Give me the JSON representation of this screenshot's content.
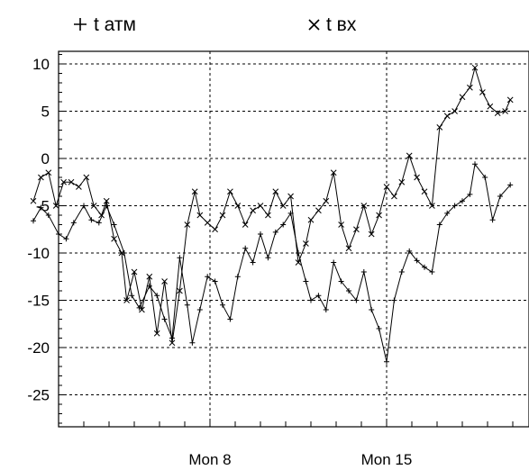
{
  "chart_data": {
    "type": "line",
    "title": "",
    "xlabel": "",
    "ylabel": "",
    "ylim": [
      -28.5,
      11.5
    ],
    "y_ticks": [
      "10",
      "5",
      "0",
      "-5",
      "-10",
      "-15",
      "-20",
      "-25"
    ],
    "x_ticks": [
      "Mon 8",
      "Mon 15"
    ],
    "grid": true,
    "legend_position": "top",
    "x_unit": "day (Mon 8 = 8.0)",
    "series": [
      {
        "name": "t атм",
        "marker": "+",
        "color": "#000000",
        "x": [
          1.0,
          1.3,
          1.6,
          2.0,
          2.3,
          2.6,
          3.0,
          3.3,
          3.6,
          3.9,
          4.2,
          4.6,
          4.9,
          5.2,
          5.6,
          5.9,
          6.2,
          6.5,
          6.8,
          7.1,
          7.3,
          7.6,
          7.9,
          8.2,
          8.5,
          8.8,
          9.1,
          9.4,
          9.7,
          10.0,
          10.3,
          10.6,
          10.9,
          11.2,
          11.5,
          11.8,
          12.0,
          12.3,
          12.6,
          12.9,
          13.2,
          13.5,
          13.8,
          14.1,
          14.4,
          14.7,
          15.0,
          15.3,
          15.6,
          15.9,
          16.2,
          16.5,
          16.8,
          17.1,
          17.4,
          17.7,
          18.0,
          18.3,
          18.5,
          18.9,
          19.2,
          19.5,
          19.9
        ],
        "values": [
          -6.6,
          -5.2,
          -6.0,
          -8.0,
          -8.5,
          -6.8,
          -5.0,
          -6.5,
          -6.8,
          -5.0,
          -7.0,
          -10.0,
          -14.5,
          -15.8,
          -13.5,
          -14.5,
          -17.0,
          -19.0,
          -10.5,
          -15.5,
          -19.5,
          -16.0,
          -12.5,
          -13.0,
          -15.5,
          -17.0,
          -12.5,
          -9.5,
          -11.0,
          -8.0,
          -10.5,
          -7.8,
          -7.0,
          -5.8,
          -10.0,
          -13.0,
          -15.0,
          -14.5,
          -16.0,
          -11.0,
          -13.0,
          -14.0,
          -15.0,
          -12.0,
          -16.0,
          -18.0,
          -21.5,
          -15.0,
          -12.0,
          -9.8,
          -10.8,
          -11.5,
          -12.0,
          -7.0,
          -5.8,
          -5.0,
          -4.5,
          -3.8,
          -0.6,
          -2.0,
          -6.5,
          -4.0,
          -2.8
        ]
      },
      {
        "name": "t вх",
        "marker": "×",
        "color": "#000000",
        "x": [
          1.0,
          1.3,
          1.6,
          1.9,
          2.2,
          2.5,
          2.8,
          3.1,
          3.4,
          3.7,
          3.9,
          4.2,
          4.5,
          4.7,
          5.0,
          5.3,
          5.6,
          5.9,
          6.2,
          6.5,
          6.8,
          7.1,
          7.4,
          7.6,
          7.9,
          8.2,
          8.5,
          8.8,
          9.1,
          9.4,
          9.7,
          10.0,
          10.3,
          10.6,
          10.9,
          11.2,
          11.5,
          11.8,
          12.0,
          12.3,
          12.6,
          12.9,
          13.2,
          13.5,
          13.8,
          14.1,
          14.4,
          14.7,
          15.0,
          15.3,
          15.6,
          15.9,
          16.2,
          16.5,
          16.8,
          17.1,
          17.4,
          17.7,
          18.0,
          18.3,
          18.5,
          18.8,
          19.1,
          19.4,
          19.7,
          19.9
        ],
        "values": [
          -4.5,
          -2.0,
          -1.5,
          -5.0,
          -2.5,
          -2.5,
          -3.0,
          -2.0,
          -5.0,
          -6.0,
          -4.5,
          -8.5,
          -10.0,
          -15.0,
          -12.0,
          -16.0,
          -12.5,
          -18.5,
          -13.0,
          -19.5,
          -14.0,
          -7.0,
          -3.5,
          -6.0,
          -6.8,
          -7.5,
          -6.0,
          -3.5,
          -5.0,
          -7.0,
          -5.5,
          -5.0,
          -6.0,
          -3.5,
          -5.0,
          -4.0,
          -11.0,
          -9.0,
          -6.5,
          -5.5,
          -4.5,
          -1.5,
          -7.0,
          -9.5,
          -7.5,
          -5.0,
          -8.0,
          -6.0,
          -3.0,
          -4.0,
          -2.5,
          0.3,
          -2.0,
          -3.5,
          -5.0,
          3.3,
          4.5,
          5.0,
          6.5,
          7.5,
          9.6,
          7.0,
          5.5,
          4.8,
          5.0,
          6.2
        ]
      }
    ]
  }
}
